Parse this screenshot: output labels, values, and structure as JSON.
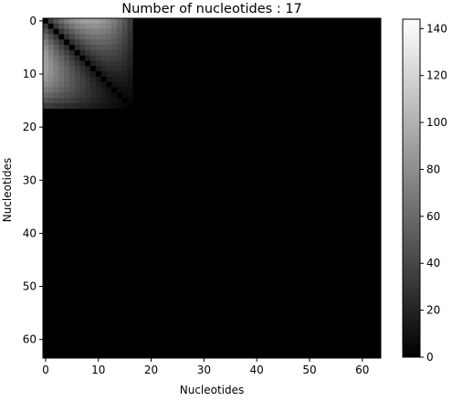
{
  "chart_data": {
    "type": "heatmap",
    "title": "Number of nucleotides : 17",
    "xlabel": "Nucleotides",
    "ylabel": "Nucleotides",
    "matrix_size": 64,
    "active_size": 17,
    "x_range": [
      -0.5,
      63.5
    ],
    "y_range": [
      -0.5,
      63.5
    ],
    "x_ticks": [
      0,
      10,
      20,
      30,
      40,
      50,
      60
    ],
    "y_ticks": [
      0,
      10,
      20,
      30,
      40,
      50,
      60
    ],
    "colormap": "gray",
    "background_value": 0,
    "value_rule": "value(i,j) = (|i-j| + 1) * (18 - max(i,j)) for i,j < 17 and i != j; 0 on the diagonal and everywhere outside the 17x17 block",
    "value_range": [
      0,
      144
    ],
    "colorbar_ticks": [
      0,
      20,
      40,
      60,
      80,
      100,
      120,
      140
    ],
    "grid": false
  }
}
